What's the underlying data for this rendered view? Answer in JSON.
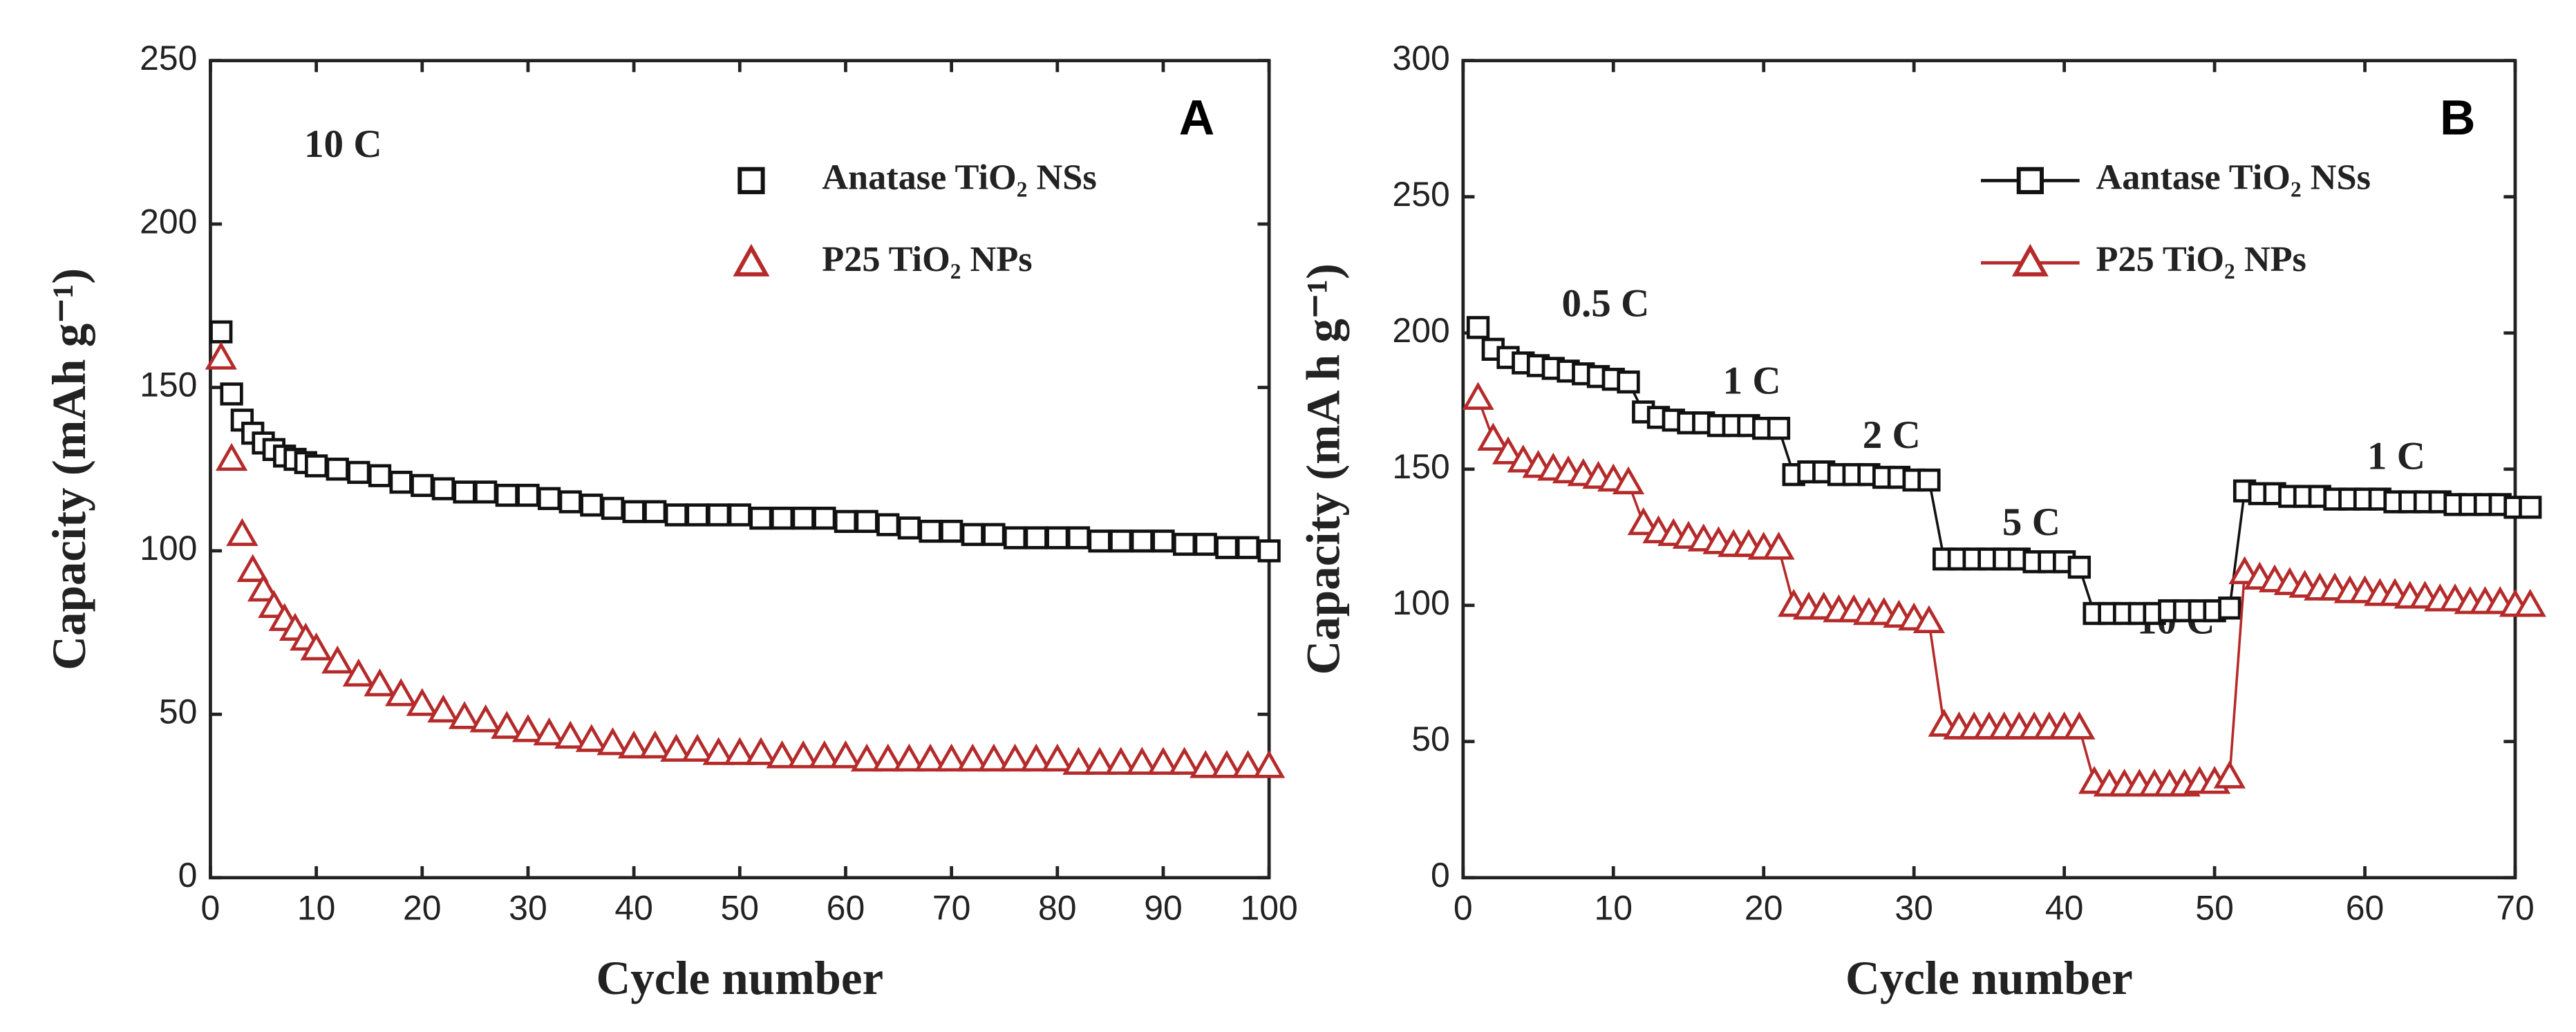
{
  "chart_data": [
    {
      "type": "scatter",
      "panel": "A",
      "annotations": [
        "10 C"
      ],
      "x_label": "Cycle number",
      "y_label": "Capacity (mAh g⁻¹)",
      "xlim": [
        0,
        100
      ],
      "xticks": [
        0,
        10,
        20,
        30,
        40,
        50,
        60,
        70,
        80,
        90,
        100
      ],
      "ylim": [
        0,
        250
      ],
      "yticks": [
        0,
        50,
        100,
        150,
        200,
        250
      ],
      "x": [
        1,
        2,
        3,
        4,
        5,
        6,
        7,
        8,
        9,
        10,
        12,
        14,
        16,
        18,
        20,
        22,
        24,
        26,
        28,
        30,
        32,
        34,
        36,
        38,
        40,
        42,
        44,
        46,
        48,
        50,
        52,
        54,
        56,
        58,
        60,
        62,
        64,
        66,
        68,
        70,
        72,
        74,
        76,
        78,
        80,
        82,
        84,
        86,
        88,
        90,
        92,
        94,
        96,
        98,
        100
      ],
      "series": [
        {
          "name": "Anatase TiO₂ NSs",
          "color": "#111111",
          "marker": "square",
          "values": [
            167,
            148,
            140,
            136,
            133,
            131,
            129,
            128,
            127,
            126,
            125,
            124,
            123,
            121,
            120,
            119,
            118,
            118,
            117,
            117,
            116,
            115,
            114,
            113,
            112,
            112,
            111,
            111,
            111,
            111,
            110,
            110,
            110,
            110,
            109,
            109,
            108,
            107,
            106,
            106,
            105,
            105,
            104,
            104,
            104,
            104,
            103,
            103,
            103,
            103,
            102,
            102,
            101,
            101,
            100
          ]
        },
        {
          "name": "P25 TiO₂ NPs",
          "color": "#b52a2a",
          "marker": "triangle",
          "values": [
            159,
            128,
            105,
            94,
            88,
            83,
            79,
            76,
            73,
            70,
            66,
            62,
            59,
            56,
            53,
            51,
            49,
            48,
            46,
            45,
            44,
            43,
            42,
            41,
            40,
            40,
            39,
            39,
            38,
            38,
            38,
            37,
            37,
            37,
            37,
            36,
            36,
            36,
            36,
            36,
            36,
            36,
            36,
            36,
            36,
            35,
            35,
            35,
            35,
            35,
            35,
            34,
            34,
            34,
            34
          ]
        }
      ]
    },
    {
      "type": "line",
      "panel": "B",
      "annotations": [
        "0.5 C",
        "1 C",
        "2 C",
        "5 C",
        "10 C",
        "1 C"
      ],
      "x_label": "Cycle number",
      "y_label": "Capacity (mA h g⁻¹)",
      "xlim": [
        0,
        70
      ],
      "xticks": [
        0,
        10,
        20,
        30,
        40,
        50,
        60,
        70
      ],
      "ylim": [
        0,
        300
      ],
      "yticks": [
        0,
        50,
        100,
        150,
        200,
        250,
        300
      ],
      "x": [
        1,
        2,
        3,
        4,
        5,
        6,
        7,
        8,
        9,
        10,
        11,
        12,
        13,
        14,
        15,
        16,
        17,
        18,
        19,
        20,
        21,
        22,
        23,
        24,
        25,
        26,
        27,
        28,
        29,
        30,
        31,
        32,
        33,
        34,
        35,
        36,
        37,
        38,
        39,
        40,
        41,
        42,
        43,
        44,
        45,
        46,
        47,
        48,
        49,
        50,
        51,
        52,
        53,
        54,
        55,
        56,
        57,
        58,
        59,
        60,
        61,
        62,
        63,
        64,
        65,
        66,
        67,
        68,
        69,
        70,
        71
      ],
      "series": [
        {
          "name": "Aantase TiO₂ NSs",
          "color": "#111111",
          "marker": "square",
          "values": [
            202,
            194,
            191,
            189,
            188,
            187,
            186,
            185,
            184,
            183,
            182,
            171,
            169,
            168,
            167,
            167,
            166,
            166,
            166,
            165,
            165,
            148,
            149,
            149,
            148,
            148,
            148,
            147,
            147,
            146,
            146,
            117,
            117,
            117,
            117,
            117,
            117,
            116,
            116,
            116,
            114,
            97,
            97,
            97,
            97,
            97,
            98,
            98,
            98,
            98,
            99,
            142,
            141,
            141,
            140,
            140,
            140,
            139,
            139,
            139,
            139,
            138,
            138,
            138,
            138,
            137,
            137,
            137,
            137,
            136,
            136
          ]
        },
        {
          "name": "P25 TiO₂ NPs",
          "color": "#b52a2a",
          "marker": "triangle",
          "values": [
            176,
            161,
            156,
            153,
            151,
            150,
            149,
            148,
            147,
            146,
            145,
            130,
            127,
            126,
            125,
            124,
            123,
            122,
            122,
            121,
            121,
            100,
            99,
            99,
            98,
            98,
            97,
            97,
            96,
            95,
            94,
            56,
            55,
            55,
            55,
            55,
            55,
            55,
            55,
            55,
            55,
            35,
            34,
            34,
            34,
            34,
            34,
            34,
            35,
            35,
            37,
            112,
            110,
            109,
            108,
            107,
            106,
            106,
            105,
            105,
            104,
            104,
            103,
            103,
            102,
            102,
            101,
            101,
            101,
            100,
            100
          ]
        }
      ]
    }
  ]
}
